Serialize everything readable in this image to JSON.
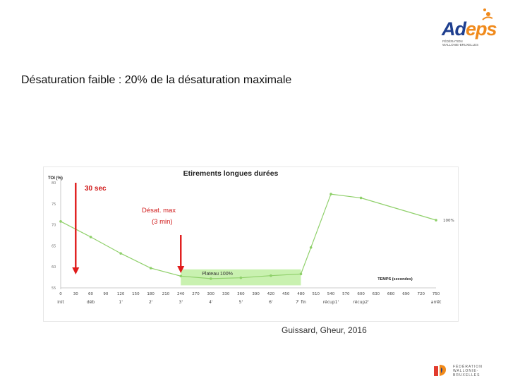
{
  "logo": {
    "brand_a": "Ad",
    "brand_b": "eps",
    "tag_line1": "FÉDÉRATION",
    "tag_line2": "WALLONIE-BRUXELLES"
  },
  "slide_title": "Désaturation faible : 20% de la désaturation maximale",
  "source": "Guissard, Gheur, 2016",
  "footer_logo": {
    "line1": "FÉDÉRATION",
    "line2": "WALLONIE-BRUXELLES"
  },
  "colors": {
    "series": "#8fd06a",
    "band": "#b7ec96",
    "arrow": "#e01b1b",
    "orange": "#f08a1c",
    "navy": "#1f3f8f"
  },
  "chart_data": {
    "type": "line",
    "title": "Etirements longues durées",
    "ylabel": "TOI (%)",
    "xlabel": "TEMPS (secondes)",
    "xlim": [
      0,
      750
    ],
    "ylim": [
      55,
      80
    ],
    "y_ticks": [
      "55",
      "60",
      "65",
      "70",
      "75",
      "80"
    ],
    "x_ticks": [
      0,
      30,
      60,
      90,
      120,
      150,
      180,
      210,
      240,
      270,
      300,
      330,
      360,
      390,
      420,
      450,
      480,
      510,
      540,
      570,
      600,
      630,
      660,
      690,
      720,
      750
    ],
    "phase_labels": [
      {
        "x": 0,
        "text": "init"
      },
      {
        "x": 60,
        "text": "déb"
      },
      {
        "x": 120,
        "text": "1'"
      },
      {
        "x": 180,
        "text": "2'"
      },
      {
        "x": 240,
        "text": "3'"
      },
      {
        "x": 300,
        "text": "4'"
      },
      {
        "x": 360,
        "text": "5'"
      },
      {
        "x": 420,
        "text": "6'"
      },
      {
        "x": 480,
        "text": "7' fin"
      },
      {
        "x": 540,
        "text": "récup1'"
      },
      {
        "x": 600,
        "text": "récup2'"
      },
      {
        "x": 750,
        "text": "arrêt"
      }
    ],
    "series": [
      {
        "x": [
          0,
          60,
          120,
          180,
          240,
          300,
          360,
          420,
          480,
          500,
          540,
          600,
          750
        ],
        "y": [
          70.8,
          67.1,
          63.2,
          59.7,
          57.8,
          57.2,
          57.4,
          57.9,
          58.3,
          64.6,
          77.3,
          76.4,
          71.1
        ]
      }
    ],
    "end_label": "100%",
    "band": {
      "x": [
        240,
        480
      ],
      "y": [
        55.6,
        59.4
      ],
      "label": "Plateau 100%"
    },
    "annotations": [
      {
        "text": "30 sec"
      },
      {
        "text": "Désat. max"
      },
      {
        "text": "(3 min)"
      }
    ],
    "arrows_x": [
      30,
      240
    ],
    "grid": false,
    "legend": "none"
  }
}
